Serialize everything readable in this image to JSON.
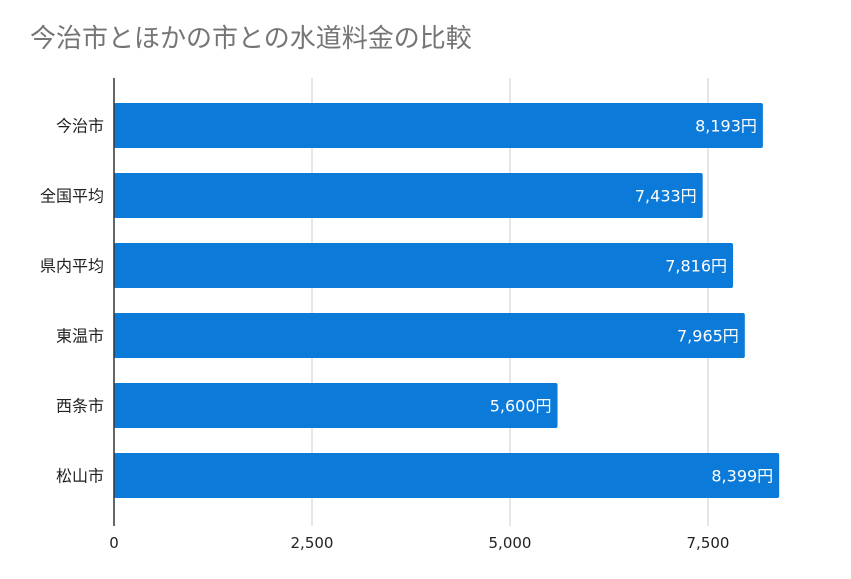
{
  "title": "今治市とほかの市との水道料金の比較",
  "colors": {
    "bar": "#0b7ad8",
    "grid": "#cccccc",
    "axis": "#333333",
    "label": "#ffffff"
  },
  "chart_data": {
    "type": "bar",
    "orientation": "horizontal",
    "title": "今治市とほかの市との水道料金の比較",
    "categories": [
      "今治市",
      "全国平均",
      "県内平均",
      "東温市",
      "西条市",
      "松山市"
    ],
    "values": [
      8193,
      7433,
      7816,
      7965,
      5600,
      8399
    ],
    "data_labels": [
      "8,193円",
      "7,433円",
      "7,816円",
      "7,965円",
      "5,600円",
      "8,399円"
    ],
    "x_ticks": [
      "0",
      "2,500",
      "5,000",
      "7,500"
    ],
    "x_tick_values": [
      0,
      2500,
      5000,
      7500
    ],
    "xlim": [
      0,
      8500
    ],
    "grid": true,
    "legend": "none"
  }
}
